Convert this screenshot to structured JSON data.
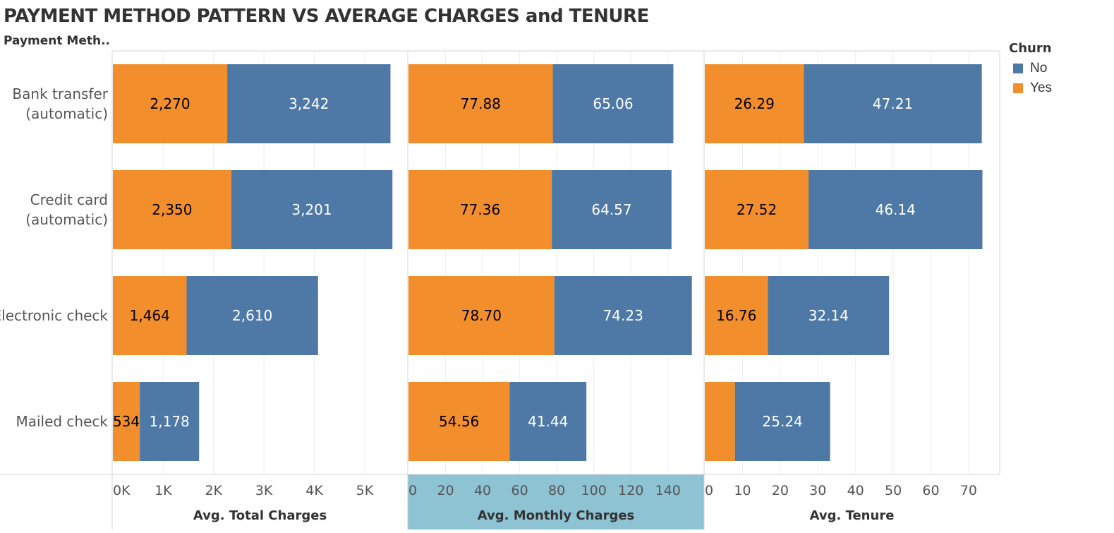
{
  "title": "PAYMENT METHOD PATTERN VS AVERAGE CHARGES and TENURE",
  "row_header": "Payment Meth..",
  "legend": {
    "title": "Churn",
    "items": [
      {
        "label": "No",
        "color": "#4e79a7"
      },
      {
        "label": "Yes",
        "color": "#f28e2b"
      }
    ]
  },
  "chart_data": {
    "type": "bar",
    "stacked": true,
    "orientation": "horizontal",
    "categories": [
      [
        "Bank transfer",
        "(automatic)"
      ],
      [
        "Credit card",
        "(automatic)"
      ],
      [
        "Electronic check"
      ],
      [
        "Mailed check"
      ]
    ],
    "panels": [
      {
        "xlabel": "Avg. Total Charges",
        "xlim": [
          0,
          5800
        ],
        "ticks": [
          0,
          1000,
          2000,
          3000,
          4000,
          5000
        ],
        "tick_labels": [
          "0K",
          "1K",
          "2K",
          "3K",
          "4K",
          "5K"
        ],
        "highlighted": false,
        "series": [
          {
            "name": "Yes",
            "values": [
              2270,
              2350,
              1464,
              534
            ],
            "labels": [
              "2,270",
              "2,350",
              "1,464",
              "534"
            ]
          },
          {
            "name": "No",
            "values": [
              3242,
              3201,
              2610,
              1178
            ],
            "labels": [
              "3,242",
              "3,201",
              "2,610",
              "1,178"
            ]
          }
        ]
      },
      {
        "xlabel": "Avg. Monthly Charges",
        "xlim": [
          0,
          158
        ],
        "ticks": [
          0,
          20,
          40,
          60,
          80,
          100,
          120,
          140
        ],
        "tick_labels": [
          "0",
          "20",
          "40",
          "60",
          "80",
          "100",
          "120",
          "140"
        ],
        "highlighted": true,
        "series": [
          {
            "name": "Yes",
            "values": [
              77.88,
              77.36,
              78.7,
              54.56
            ],
            "labels": [
              "77.88",
              "77.36",
              "78.70",
              "54.56"
            ]
          },
          {
            "name": "No",
            "values": [
              65.06,
              64.57,
              74.23,
              41.44
            ],
            "labels": [
              "65.06",
              "64.57",
              "74.23",
              "41.44"
            ]
          }
        ]
      },
      {
        "xlabel": "Avg. Tenure",
        "xlim": [
          0,
          77.5
        ],
        "ticks": [
          0,
          10,
          20,
          30,
          40,
          50,
          60,
          70
        ],
        "tick_labels": [
          "0",
          "10",
          "20",
          "30",
          "40",
          "50",
          "60",
          "70"
        ],
        "highlighted": false,
        "series": [
          {
            "name": "Yes",
            "values": [
              26.29,
              27.52,
              16.76,
              8.0
            ],
            "labels": [
              "26.29",
              "27.52",
              "16.76",
              ""
            ]
          },
          {
            "name": "No",
            "values": [
              47.21,
              46.14,
              32.14,
              25.24
            ],
            "labels": [
              "47.21",
              "46.14",
              "32.14",
              "25.24"
            ]
          }
        ]
      }
    ]
  }
}
